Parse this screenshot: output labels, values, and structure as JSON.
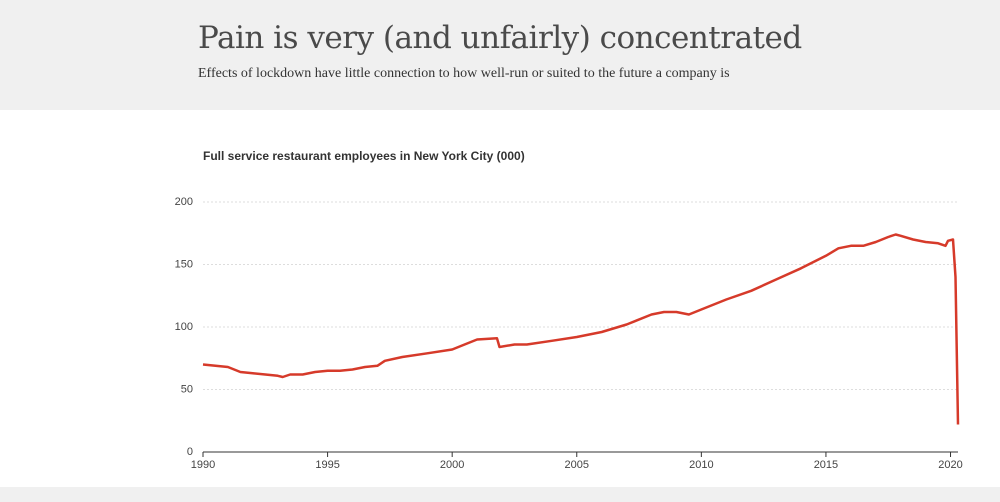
{
  "header": {
    "title": "Pain is very (and unfairly) concentrated",
    "subtitle": "Effects of lockdown have little connection to how well-run or suited to the future a company is"
  },
  "chart_data": {
    "type": "line",
    "title": "Full service restaurant employees in New York City (000)",
    "color": "#d63a2a",
    "x": [
      1990,
      1990.5,
      1991,
      1991.5,
      1992,
      1992.5,
      1993,
      1993.2,
      1993.5,
      1994,
      1994.5,
      1995,
      1995.5,
      1996,
      1996.5,
      1997,
      1997.3,
      1998,
      1999,
      2000,
      2000.5,
      2001,
      2001.8,
      2001.9,
      2002.5,
      2003,
      2004,
      2005,
      2006,
      2007,
      2008,
      2008.5,
      2009,
      2009.5,
      2010,
      2011,
      2012,
      2013,
      2014,
      2015,
      2015.5,
      2016,
      2016.5,
      2017,
      2017.5,
      2017.8,
      2018,
      2018.5,
      2019,
      2019.5,
      2019.8,
      2019.9,
      2020.1,
      2020.2,
      2020.3
    ],
    "values": [
      70,
      69,
      68,
      64,
      63,
      62,
      61,
      60,
      62,
      62,
      64,
      65,
      65,
      66,
      68,
      69,
      73,
      76,
      79,
      82,
      86,
      90,
      91,
      84,
      86,
      86,
      89,
      92,
      96,
      102,
      110,
      112,
      112,
      110,
      114,
      122,
      129,
      138,
      147,
      157,
      163,
      165,
      165,
      168,
      172,
      174,
      173,
      170,
      168,
      167,
      165,
      169,
      170,
      140,
      22
    ],
    "xlim": [
      1990,
      2020.3
    ],
    "xticks": [
      1990,
      1995,
      2000,
      2005,
      2010,
      2015,
      2020
    ],
    "ylim": [
      0,
      200
    ],
    "yticks": [
      0,
      50,
      100,
      150,
      200
    ],
    "grid": true
  }
}
